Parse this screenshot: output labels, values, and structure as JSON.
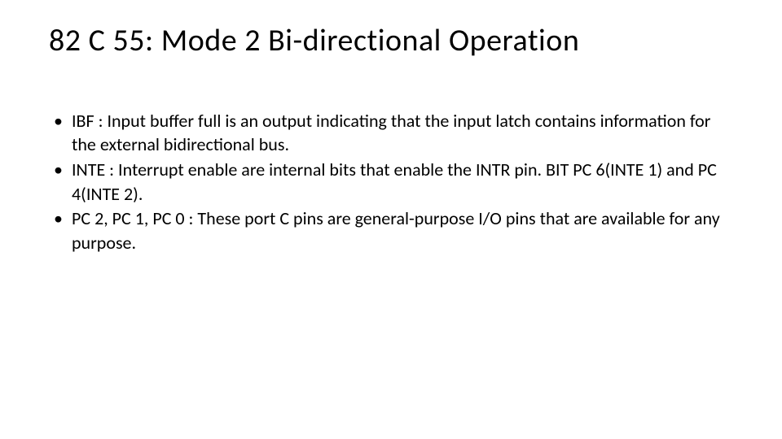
{
  "title": "82 C 55: Mode 2 Bi-directional Operation",
  "bullets": [
    "IBF : Input buffer full is an output indicating that the input latch contains information for the external bidirectional bus.",
    "INTE : Interrupt enable are internal bits that enable the INTR pin. BIT PC 6(INTE 1) and PC 4(INTE 2).",
    "PC 2, PC 1, PC 0 : These port C pins are general-purpose I/O pins that are available for any purpose."
  ],
  "colors": {
    "background": "#ffffff",
    "text": "#000000"
  },
  "typography": {
    "title_fontsize": 38,
    "body_fontsize": 22,
    "font_family": "Calibri"
  }
}
